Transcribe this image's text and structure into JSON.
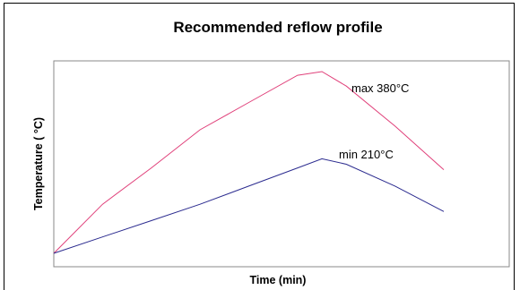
{
  "chart_data": {
    "type": "line",
    "title": "Recommended reflow profile",
    "xlabel": "Time (min)",
    "ylabel": "Temperature ( °C)",
    "grid": false,
    "legend": "none",
    "series": [
      {
        "color": "#e0407a",
        "points": [
          [
            0,
            0
          ],
          [
            1,
            0.27
          ],
          [
            2,
            0.47
          ],
          [
            3,
            0.68
          ],
          [
            4,
            0.83
          ],
          [
            5,
            0.98
          ],
          [
            5.5,
            1.0
          ],
          [
            6,
            0.92
          ],
          [
            7,
            0.7
          ],
          [
            8,
            0.46
          ]
        ],
        "label": "max 380°C"
      },
      {
        "color": "#2b2b8f",
        "points": [
          [
            0,
            0
          ],
          [
            1,
            0.09
          ],
          [
            2,
            0.18
          ],
          [
            3,
            0.27
          ],
          [
            4,
            0.37
          ],
          [
            5,
            0.47
          ],
          [
            5.5,
            0.52
          ],
          [
            6,
            0.49
          ],
          [
            7,
            0.37
          ],
          [
            8,
            0.23
          ]
        ],
        "label": "min 210°C"
      }
    ],
    "xlim": [
      0,
      8
    ],
    "ylim": [
      0,
      1
    ]
  }
}
